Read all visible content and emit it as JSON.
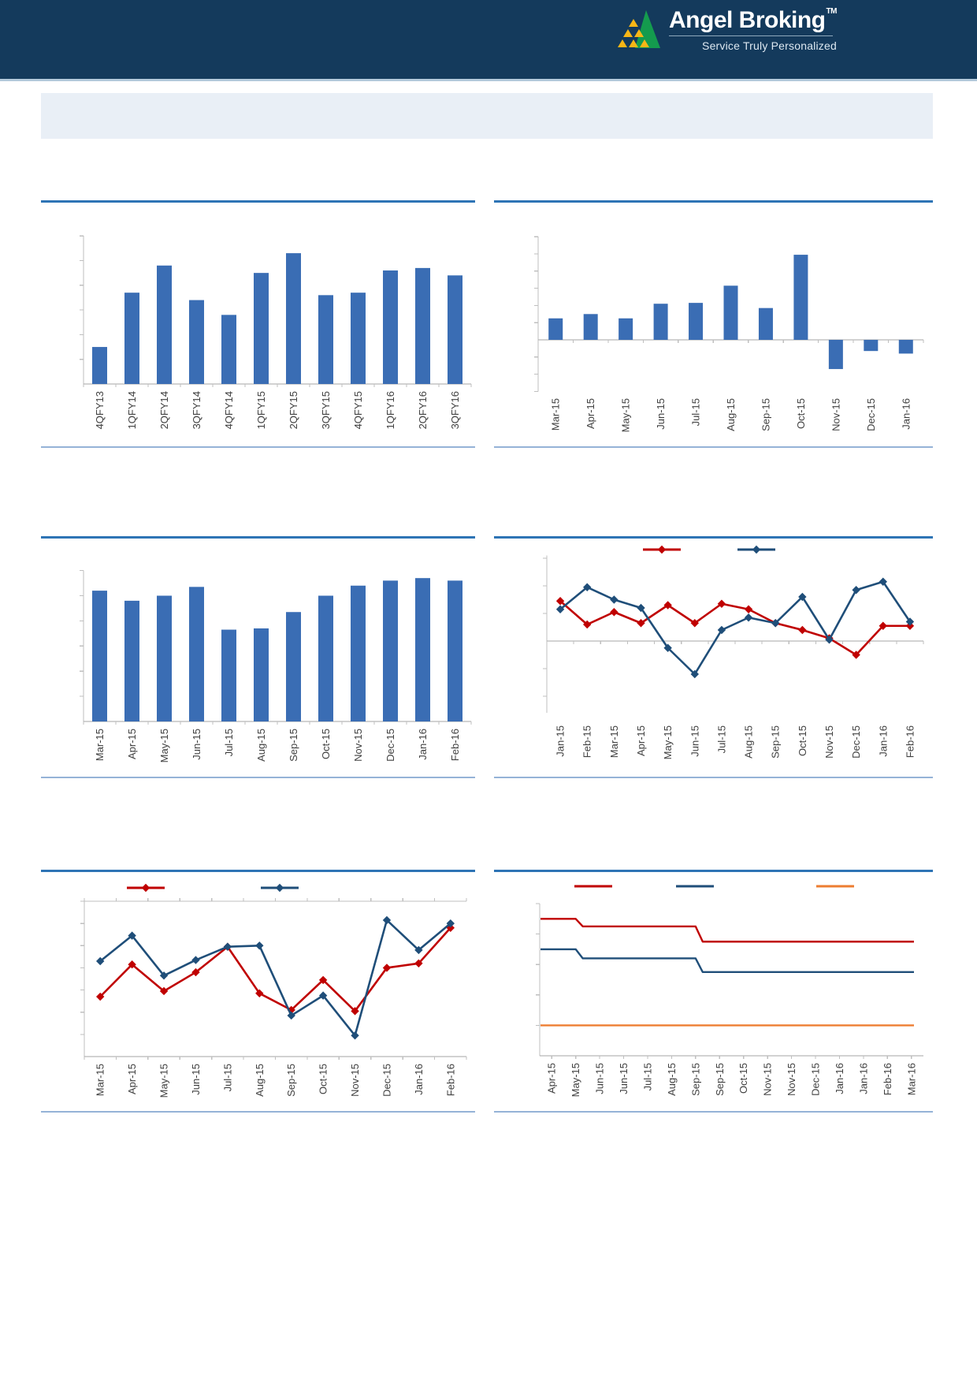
{
  "header": {
    "brand": "Angel Broking",
    "trademark": "TM",
    "tagline": "Service Truly Personalized"
  },
  "palette": {
    "header_navy": "#143A5C",
    "divider_blue": "#2E74B5",
    "rule_light_blue": "#95B3D7",
    "panel_light": "#E9EFF6",
    "bar_blue": "#3A6DB4",
    "line_blue": "#1F4E79",
    "red": "#C00000",
    "orange": "#ED7D31",
    "logo_green": "#149B4E",
    "logo_yellow": "#F8B616",
    "axis_gray": "#BFBFBF",
    "zero_line_gray": "#A6A6A6",
    "label_gray": "#404040"
  },
  "chart_data": [
    {
      "id": "quarterly-bar",
      "type": "bar",
      "categories": [
        "4QFY13",
        "1QFY14",
        "2QFY14",
        "3QFY14",
        "4QFY14",
        "1QFY15",
        "2QFY15",
        "3QFY15",
        "4QFY15",
        "1QFY16",
        "2QFY16",
        "3QFY16"
      ],
      "values": [
        1.5,
        3.7,
        4.8,
        3.4,
        2.8,
        4.5,
        5.3,
        3.6,
        3.7,
        4.6,
        4.7,
        4.4
      ],
      "ylim": [
        0,
        6
      ],
      "grid": false,
      "legend": []
    },
    {
      "id": "monthly-bar-pos-neg",
      "type": "bar",
      "categories": [
        "Mar-15",
        "Apr-15",
        "May-15",
        "Jun-15",
        "Jul-15",
        "Aug-15",
        "Sep-15",
        "Oct-15",
        "Nov-15",
        "Dec-15",
        "Jan-16"
      ],
      "values": [
        1.25,
        1.5,
        1.25,
        2.1,
        2.15,
        3.15,
        1.85,
        4.95,
        -1.7,
        -0.65,
        -0.8
      ],
      "ylim": [
        -3,
        6
      ],
      "grid": false,
      "legend": []
    },
    {
      "id": "monthly-bar",
      "type": "bar",
      "categories": [
        "Mar-15",
        "Apr-15",
        "May-15",
        "Jun-15",
        "Jul-15",
        "Aug-15",
        "Sep-15",
        "Oct-15",
        "Nov-15",
        "Dec-15",
        "Jan-16",
        "Feb-16"
      ],
      "values": [
        5.2,
        4.8,
        5.0,
        5.35,
        3.65,
        3.7,
        4.35,
        5.0,
        5.4,
        5.6,
        5.7,
        5.6
      ],
      "ylim": [
        0,
        6
      ],
      "grid": false,
      "legend": []
    },
    {
      "id": "two-line-diamond",
      "type": "line",
      "categories": [
        "Jan-15",
        "Feb-15",
        "Mar-15",
        "Apr-15",
        "May-15",
        "Jun-15",
        "Jul-15",
        "Aug-15",
        "Sep-15",
        "Oct-15",
        "Nov-15",
        "Dec-15",
        "Jan-16",
        "Feb-16"
      ],
      "series": [
        {
          "name": "red-series",
          "color_key": "red",
          "marker": "diamond",
          "values": [
            1.45,
            0.6,
            1.05,
            0.65,
            1.3,
            0.65,
            1.35,
            1.15,
            0.65,
            0.4,
            0.1,
            -0.5,
            0.55,
            0.55
          ]
        },
        {
          "name": "blue-series",
          "color_key": "line_blue",
          "marker": "diamond",
          "values": [
            1.15,
            1.95,
            1.5,
            1.2,
            -0.25,
            -1.2,
            0.4,
            0.85,
            0.65,
            1.6,
            0.05,
            1.85,
            2.15,
            0.7
          ]
        }
      ],
      "ylim": [
        -2.6,
        3.1
      ],
      "grid": false,
      "legend_position": "top"
    },
    {
      "id": "two-line-diamond-2",
      "type": "line",
      "categories": [
        "Mar-15",
        "Apr-15",
        "May-15",
        "Jun-15",
        "Jul-15",
        "Aug-15",
        "Sep-15",
        "Oct-15",
        "Nov-15",
        "Dec-15",
        "Jan-16",
        "Feb-16"
      ],
      "series": [
        {
          "name": "red-series",
          "color_key": "red",
          "marker": "diamond",
          "values": [
            2.7,
            4.15,
            2.95,
            3.8,
            4.95,
            2.85,
            2.1,
            3.45,
            2.05,
            4.0,
            4.2,
            5.8
          ]
        },
        {
          "name": "blue-series",
          "color_key": "line_blue",
          "marker": "diamond",
          "values": [
            4.3,
            5.45,
            3.65,
            4.35,
            4.95,
            5.0,
            1.85,
            2.75,
            0.95,
            6.15,
            4.8,
            6.0
          ]
        }
      ],
      "ylim": [
        0,
        7
      ],
      "grid": false,
      "legend_position": "top"
    },
    {
      "id": "three-step-line",
      "type": "step-line",
      "categories": [
        "Apr-15",
        "May-15",
        "Jun-15",
        "Jun-15",
        "Jul-15",
        "Aug-15",
        "Sep-15",
        "Sep-15",
        "Oct-15",
        "Nov-15",
        "Nov-15",
        "Dec-15",
        "Jan-16",
        "Jan-16",
        "Feb-16",
        "Mar-16"
      ],
      "series": [
        {
          "name": "red-series",
          "color_key": "red",
          "marker": "none",
          "values": [
            4.5,
            4.5,
            4.25,
            4.25,
            4.25,
            4.25,
            4.25,
            3.75,
            3.75,
            3.75,
            3.75,
            3.75,
            3.75,
            3.75,
            3.75,
            3.75
          ]
        },
        {
          "name": "blue-series",
          "color_key": "line_blue",
          "marker": "none",
          "values": [
            3.5,
            3.5,
            3.2,
            3.2,
            3.2,
            3.2,
            3.2,
            2.75,
            2.75,
            2.75,
            2.75,
            2.75,
            2.75,
            2.75,
            2.75,
            2.75
          ]
        },
        {
          "name": "orange-series",
          "color_key": "orange",
          "marker": "none",
          "values": [
            1.0,
            1.0,
            1.0,
            1.0,
            1.0,
            1.0,
            1.0,
            1.0,
            1.0,
            1.0,
            1.0,
            1.0,
            1.0,
            1.0,
            1.0,
            1.0
          ]
        }
      ],
      "ylim": [
        0,
        5
      ],
      "grid": false,
      "legend_position": "top"
    }
  ]
}
